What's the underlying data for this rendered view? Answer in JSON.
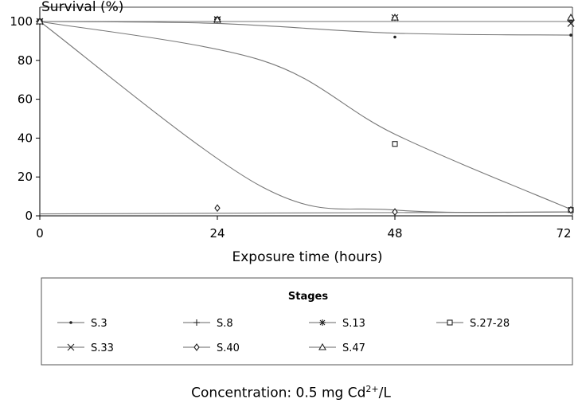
{
  "chart_data": {
    "type": "line",
    "title": "",
    "ylabel": "Survival (%)",
    "xlabel": "Exposure time (hours)",
    "xlim": [
      0,
      72
    ],
    "ylim": [
      0,
      100
    ],
    "x_ticks": [
      "0",
      "24",
      "48",
      "72"
    ],
    "y_ticks": [
      "0",
      "20",
      "40",
      "60",
      "80",
      "100"
    ],
    "grid": false,
    "legend": {
      "title": "Stages",
      "placement": "bottom"
    },
    "series": [
      {
        "name": "S.3",
        "marker": "dot",
        "points": [
          [
            0,
            100
          ],
          [
            24,
            101
          ],
          [
            48,
            92
          ],
          [
            72,
            93
          ]
        ]
      },
      {
        "name": "S.8",
        "marker": "plus",
        "points": [
          [
            0,
            100
          ],
          [
            24,
            101
          ],
          [
            48,
            102
          ],
          [
            72,
            101
          ]
        ]
      },
      {
        "name": "S.13",
        "marker": "star",
        "points": [
          [
            0,
            100
          ],
          [
            24,
            101
          ],
          [
            48,
            102
          ],
          [
            72,
            101
          ]
        ]
      },
      {
        "name": "S.27-28",
        "marker": "square",
        "points": [
          [
            0,
            100
          ],
          [
            24,
            101
          ],
          [
            48,
            37
          ],
          [
            72,
            3
          ]
        ]
      },
      {
        "name": "S.33",
        "marker": "x",
        "points": [
          [
            0,
            100
          ],
          [
            24,
            101
          ],
          [
            48,
            102
          ],
          [
            72,
            99
          ]
        ]
      },
      {
        "name": "S.40",
        "marker": "diamond",
        "points": [
          [
            0,
            100
          ],
          [
            24,
            4
          ],
          [
            48,
            2
          ],
          [
            72,
            3
          ]
        ]
      },
      {
        "name": "S.47",
        "marker": "triangle",
        "points": [
          [
            0,
            100
          ],
          [
            24,
            101
          ],
          [
            48,
            102
          ],
          [
            72,
            102
          ]
        ]
      }
    ],
    "fit_curves": [
      {
        "points": [
          [
            0,
            100
          ],
          [
            72,
            100
          ]
        ]
      },
      {
        "points": [
          [
            0,
            100
          ],
          [
            24,
            99
          ],
          [
            48,
            94
          ],
          [
            72,
            93
          ]
        ]
      },
      {
        "points": [
          [
            0,
            100
          ],
          [
            30,
            80
          ],
          [
            48,
            42
          ],
          [
            72,
            3
          ]
        ]
      },
      {
        "points": [
          [
            0,
            100
          ],
          [
            30,
            15
          ],
          [
            48,
            3
          ],
          [
            72,
            2
          ]
        ]
      },
      {
        "points": [
          [
            0,
            1
          ],
          [
            72,
            2
          ]
        ]
      }
    ]
  },
  "caption": {
    "prefix": "Concentration: 0.5 mg Cd",
    "superscript": "2+",
    "suffix": "/L"
  }
}
